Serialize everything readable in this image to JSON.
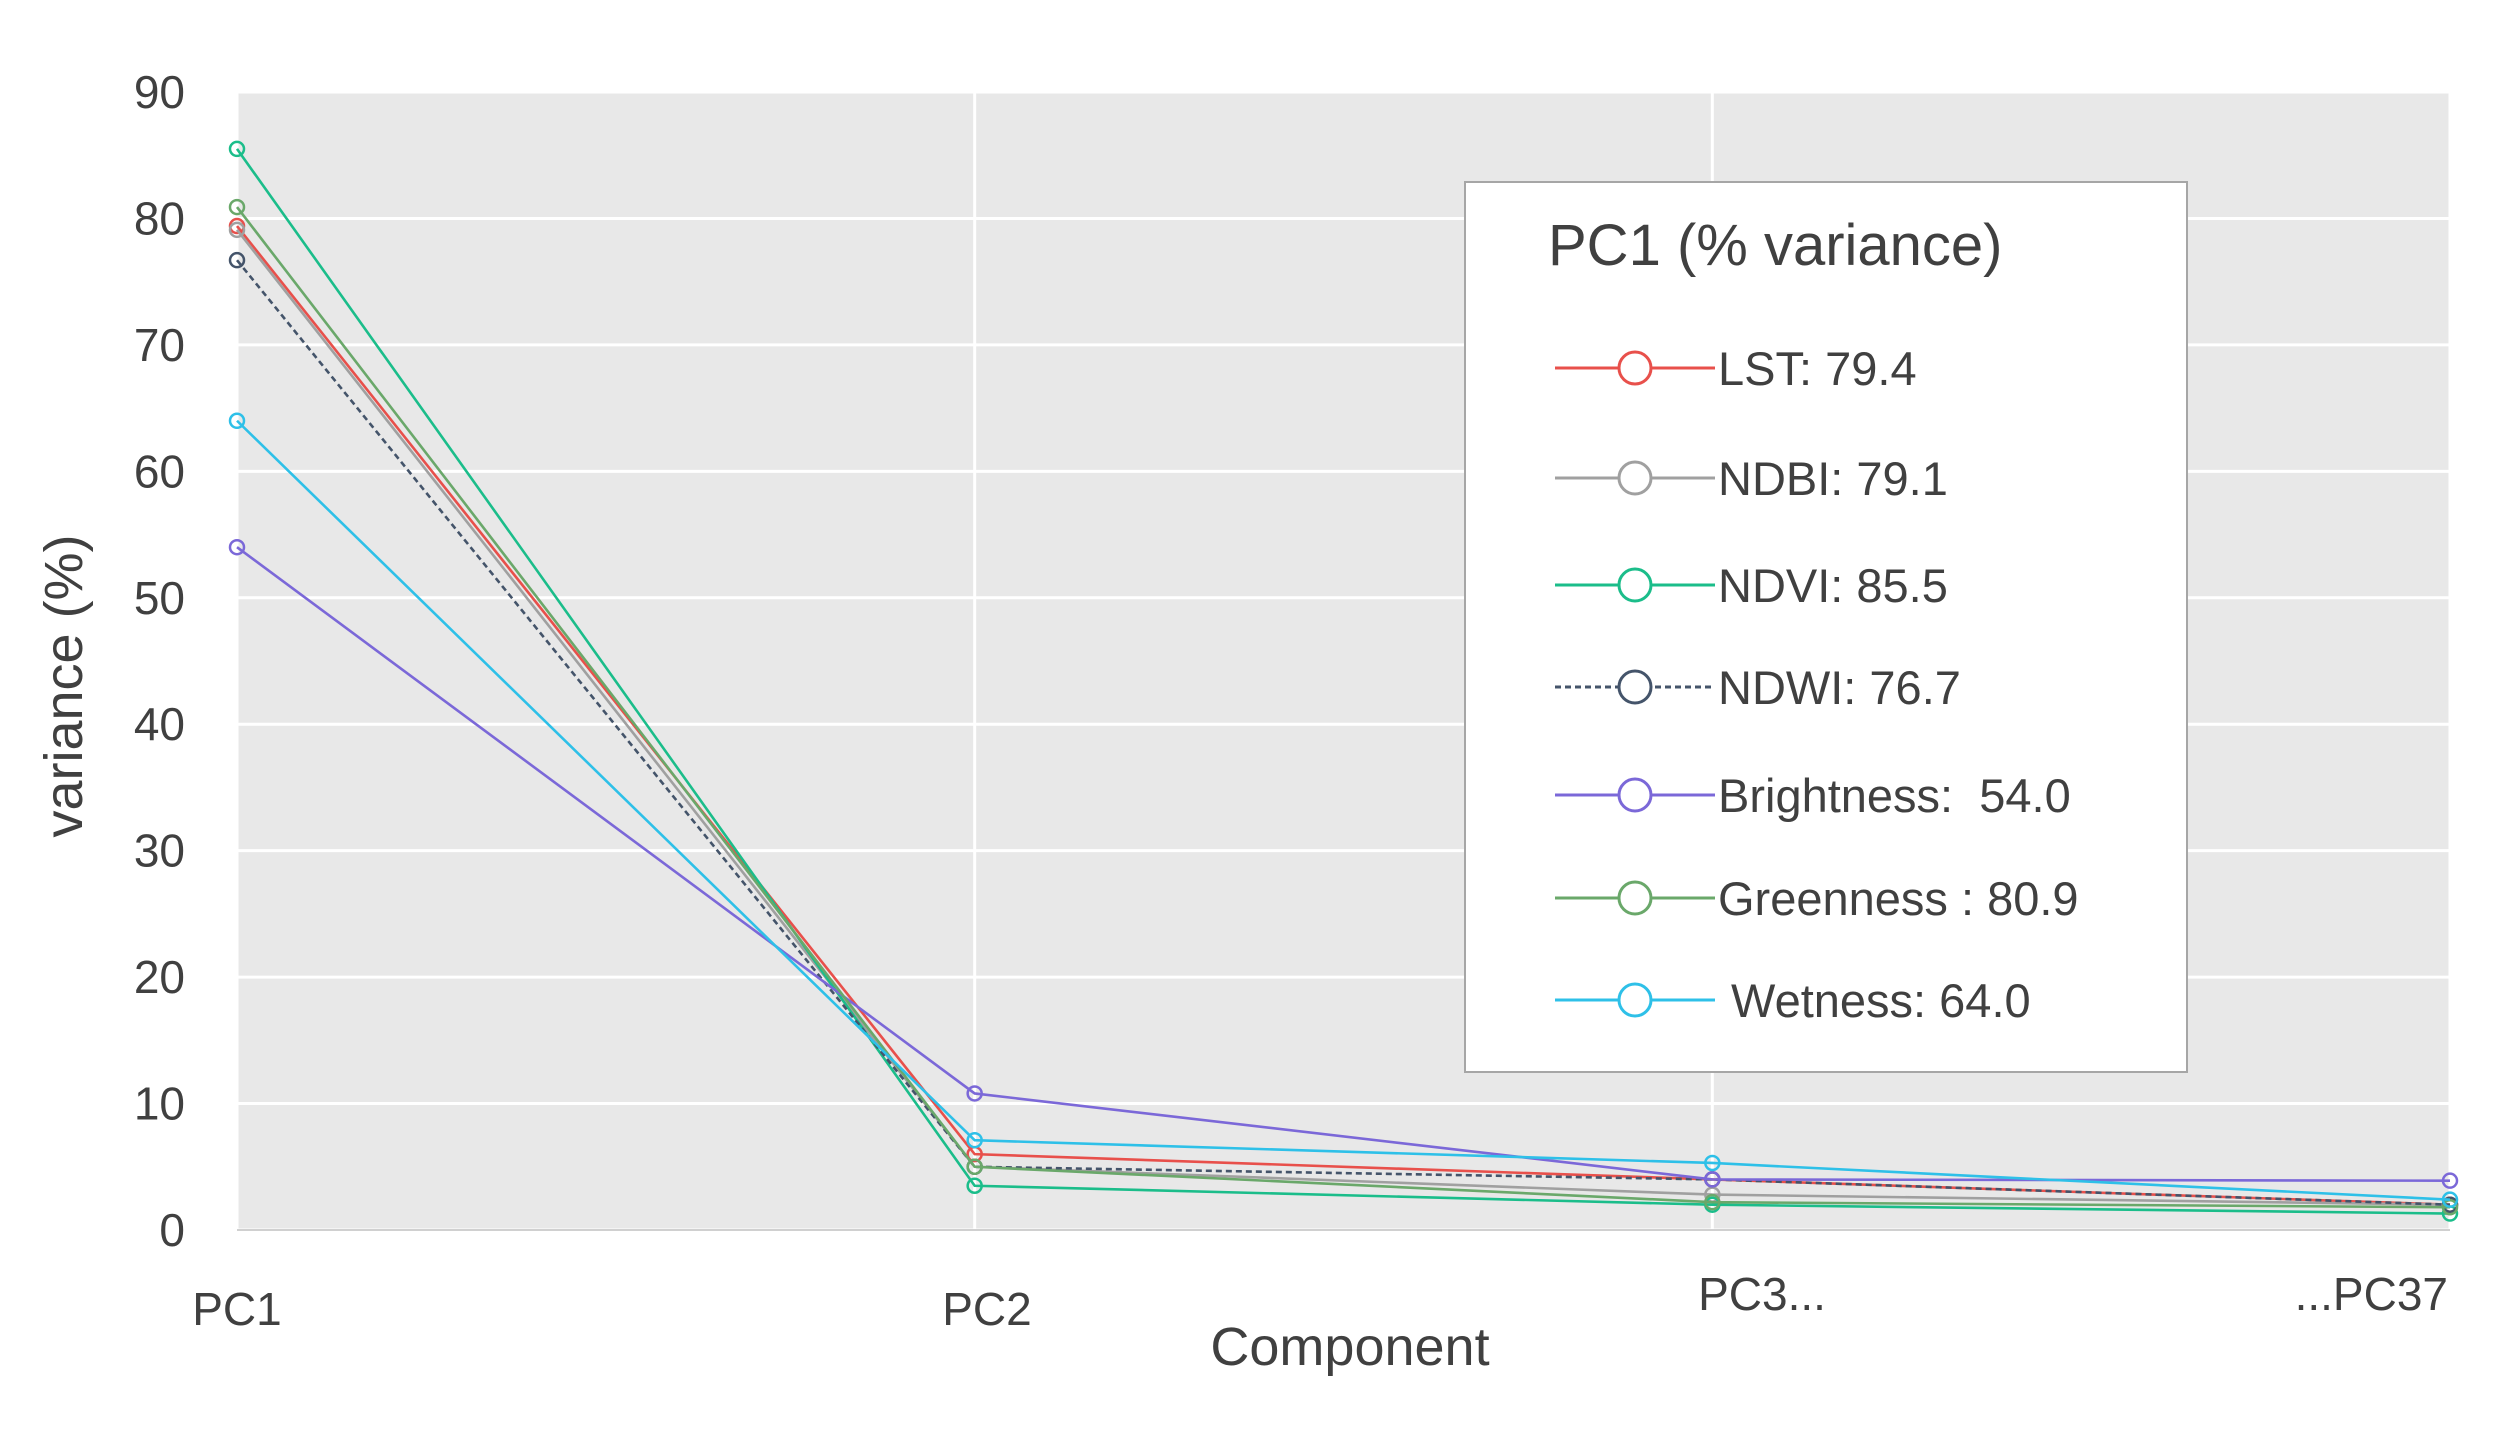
{
  "chart_data": {
    "type": "line",
    "title": "",
    "xlabel": "Component",
    "ylabel": "variance (%)",
    "categories": [
      "PC1",
      "PC2",
      "PC3...",
      "...PC37"
    ],
    "ylim": [
      0,
      90
    ],
    "yticks": [
      0,
      10,
      20,
      30,
      40,
      50,
      60,
      70,
      80,
      90
    ],
    "grid": true,
    "legend": {
      "title": "PC1 (% variance)",
      "placement": "top-right"
    },
    "series": [
      {
        "name": "LST",
        "legend_label": "LST: 79.4",
        "values": [
          79.4,
          6.0,
          4.0,
          2.0
        ],
        "color": "#e8504b",
        "dashed": false
      },
      {
        "name": "NDBI",
        "legend_label": "NDBI: 79.1",
        "values": [
          79.1,
          5.0,
          2.8,
          2.0
        ],
        "color": "#a0a0a0",
        "dashed": false
      },
      {
        "name": "NDVI",
        "legend_label": "NDVI: 85.5",
        "values": [
          85.5,
          3.5,
          2.0,
          1.3
        ],
        "color": "#1bbd8a",
        "dashed": false
      },
      {
        "name": "NDWI",
        "legend_label": "NDWI: 76.7",
        "values": [
          76.7,
          5.0,
          4.0,
          2.0
        ],
        "color": "#44546a",
        "dashed": true
      },
      {
        "name": "Brightness",
        "legend_label": "Brightness:  54.0",
        "values": [
          54.0,
          10.8,
          4.0,
          3.9
        ],
        "color": "#7b68d8",
        "dashed": false
      },
      {
        "name": "Greenness",
        "legend_label": "Greenness : 80.9",
        "values": [
          80.9,
          5.0,
          2.2,
          1.8
        ],
        "color": "#6aa86a",
        "dashed": false
      },
      {
        "name": "Wetness",
        "legend_label": " Wetness: 64.0",
        "values": [
          64.0,
          7.1,
          5.3,
          2.4
        ],
        "color": "#2ec0e8",
        "dashed": false
      }
    ]
  }
}
